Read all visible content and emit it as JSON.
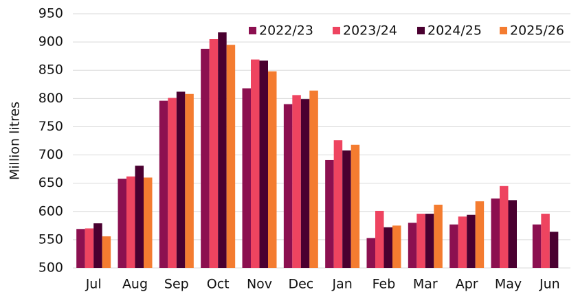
{
  "chart_data": {
    "type": "bar",
    "y_label": "Million litres",
    "categories": [
      "Jul",
      "Aug",
      "Sep",
      "Oct",
      "Nov",
      "Dec",
      "Jan",
      "Feb",
      "Mar",
      "Apr",
      "May",
      "Jun"
    ],
    "series": [
      {
        "name": "2022/23",
        "color": "#8c1050",
        "values": [
          569,
          658,
          796,
          888,
          818,
          790,
          691,
          553,
          580,
          577,
          623,
          577
        ]
      },
      {
        "name": "2023/24",
        "color": "#ee4460",
        "values": [
          570,
          662,
          801,
          905,
          869,
          806,
          726,
          601,
          596,
          591,
          645,
          596
        ]
      },
      {
        "name": "2024/25",
        "color": "#4a0030",
        "values": [
          579,
          681,
          812,
          917,
          867,
          799,
          708,
          572,
          596,
          594,
          620,
          564
        ]
      },
      {
        "name": "2025/26",
        "color": "#f47c30",
        "values": [
          556,
          660,
          808,
          895,
          848,
          814,
          718,
          575,
          612,
          618,
          null,
          null
        ]
      }
    ],
    "ylim": [
      500,
      950
    ],
    "yticks": [
      500,
      550,
      600,
      650,
      700,
      750,
      800,
      850,
      900,
      950
    ],
    "grid": true,
    "legend": "top-right"
  }
}
